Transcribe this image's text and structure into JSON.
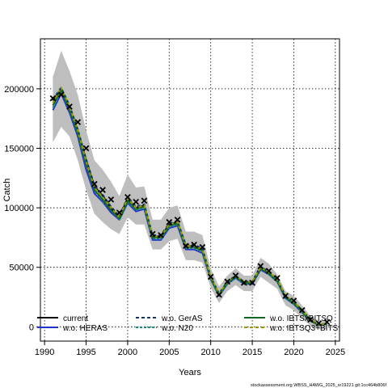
{
  "chart_data": {
    "type": "line",
    "xlabel": "Years",
    "ylabel": "Catch",
    "xlim": [
      1989.5,
      2025.5
    ],
    "ylim": [
      -12000,
      242000
    ],
    "x_ticks": [
      1990,
      1995,
      2000,
      2005,
      2010,
      2015,
      2020,
      2025
    ],
    "y_ticks": [
      0,
      50000,
      100000,
      150000,
      200000
    ],
    "grid": true,
    "legend_placement": "bottom",
    "credit": "stockassessment.org WBSS_HAWG_2025_sr19221 git:1cc464b806f",
    "years": [
      1991,
      1992,
      1993,
      1994,
      1995,
      1996,
      1997,
      1998,
      1999,
      2000,
      2001,
      2002,
      2003,
      2004,
      2005,
      2006,
      2007,
      2008,
      2009,
      2010,
      2011,
      2012,
      2013,
      2014,
      2015,
      2016,
      2017,
      2018,
      2019,
      2020,
      2021,
      2022,
      2023,
      2024
    ],
    "band": {
      "lower": [
        155000,
        168000,
        160000,
        140000,
        115000,
        95000,
        88000,
        82000,
        78000,
        92000,
        86000,
        86000,
        65000,
        65000,
        72000,
        74000,
        56000,
        56000,
        54000,
        33000,
        20000,
        30000,
        35000,
        30000,
        30000,
        42000,
        37000,
        32000,
        18000,
        14000,
        7000,
        1000,
        -2000,
        -2000
      ],
      "upper": [
        210000,
        232000,
        215000,
        195000,
        165000,
        140000,
        132000,
        122000,
        110000,
        128000,
        117000,
        118000,
        90000,
        90000,
        100000,
        102000,
        80000,
        80000,
        77000,
        49000,
        34000,
        43000,
        49000,
        43000,
        43000,
        58000,
        53000,
        44000,
        30000,
        26000,
        18000,
        9000,
        5000,
        6000
      ]
    },
    "series": [
      {
        "name": "current",
        "color": "#000000",
        "dash": "",
        "values": [
          190000,
          200000,
          185000,
          165000,
          140000,
          118000,
          110000,
          100000,
          92000,
          108000,
          100000,
          102000,
          76000,
          76000,
          86000,
          88000,
          68000,
          68000,
          65000,
          41000,
          27000,
          37000,
          42000,
          37000,
          37000,
          50000,
          45000,
          39000,
          25000,
          20000,
          13000,
          5000,
          1500,
          2500
        ]
      },
      {
        "name": "w.o. HERAS",
        "color": "#2233cc",
        "dash": "",
        "values": [
          182000,
          196000,
          180000,
          160000,
          132000,
          112000,
          105000,
          96000,
          90000,
          104000,
          97000,
          99000,
          73000,
          73000,
          83000,
          85000,
          65000,
          65000,
          62000,
          40000,
          26000,
          36000,
          41000,
          36000,
          36000,
          48000,
          44000,
          38000,
          24000,
          19000,
          12000,
          5000,
          1500,
          2500
        ]
      },
      {
        "name": "w.o. GerAS",
        "color": "#113366",
        "dash": "4,3",
        "values": [
          191000,
          201000,
          186000,
          166000,
          141000,
          119000,
          111000,
          101000,
          93000,
          109000,
          101000,
          103000,
          77000,
          77000,
          87000,
          89000,
          69000,
          69000,
          66000,
          42000,
          28000,
          38000,
          43000,
          38000,
          38000,
          51000,
          46000,
          40000,
          26000,
          21000,
          14000,
          6000,
          1500,
          2500
        ]
      },
      {
        "name": "w.o. N20",
        "color": "#1a8a7a",
        "dash": "3,2",
        "values": [
          184000,
          198000,
          182000,
          162000,
          136000,
          114000,
          106000,
          98000,
          90000,
          105000,
          98000,
          100000,
          74000,
          74000,
          84000,
          86000,
          66000,
          66000,
          63000,
          40000,
          26000,
          36000,
          41000,
          36000,
          36000,
          49000,
          44000,
          38000,
          24000,
          19000,
          12000,
          5000,
          1500,
          2500
        ]
      },
      {
        "name": "w.o. IBTSxBITSQ",
        "color": "#116622",
        "dash": "",
        "values": [
          186000,
          199000,
          183000,
          163000,
          137000,
          115000,
          107000,
          98000,
          91000,
          106000,
          99000,
          101000,
          75000,
          75000,
          85000,
          87000,
          67000,
          67000,
          64000,
          41000,
          27000,
          37000,
          42000,
          37000,
          37000,
          49000,
          45000,
          39000,
          25000,
          20000,
          13000,
          5000,
          1500,
          2500
        ]
      },
      {
        "name": "w.o. IBTSQ3+BITS",
        "color": "#999900",
        "dash": "4,3",
        "values": [
          188000,
          201000,
          185000,
          165000,
          139000,
          117000,
          109000,
          100000,
          92000,
          108000,
          100000,
          102000,
          76000,
          76000,
          86000,
          88000,
          68000,
          68000,
          65000,
          42000,
          28000,
          38000,
          43000,
          38000,
          38000,
          50000,
          46000,
          40000,
          26000,
          21000,
          14000,
          6000,
          2000,
          3000
        ]
      }
    ],
    "observed": {
      "name": "observed",
      "years": [
        1991,
        1992,
        1993,
        1994,
        1995,
        1996,
        1997,
        1998,
        1999,
        2000,
        2001,
        2002,
        2003,
        2004,
        2005,
        2006,
        2007,
        2008,
        2009,
        2010,
        2011,
        2012,
        2013,
        2014,
        2015,
        2016,
        2017,
        2018,
        2019,
        2020,
        2021,
        2022,
        2023,
        2024
      ],
      "values": [
        192000,
        195000,
        185000,
        172000,
        150000,
        120000,
        115000,
        107000,
        96000,
        109000,
        105000,
        106000,
        78000,
        77000,
        88000,
        90000,
        68000,
        69000,
        67000,
        42000,
        27000,
        38000,
        43000,
        37000,
        37000,
        51000,
        47000,
        41000,
        26000,
        22000,
        14000,
        6000,
        3000,
        4000
      ]
    },
    "legend": [
      {
        "label": "current",
        "color": "#000000",
        "dash": "",
        "column": 0,
        "row": 0
      },
      {
        "label": "w.o. HERAS",
        "color": "#2233cc",
        "dash": "",
        "column": 0,
        "row": 1
      },
      {
        "label": "w.o. GerAS",
        "color": "#113366",
        "dash": "4,3",
        "column": 1,
        "row": 0
      },
      {
        "label": "w.o. N20",
        "color": "#1a8a7a",
        "dash": "3,2",
        "column": 1,
        "row": 1
      },
      {
        "label": "w.o. IBTSxBITSQ",
        "color": "#116622",
        "dash": "",
        "column": 2,
        "row": 0
      },
      {
        "label": "w.o. IBTSQ3+BITS",
        "color": "#999900",
        "dash": "4,3",
        "column": 2,
        "row": 1
      }
    ],
    "band_color": "#bebebe"
  }
}
